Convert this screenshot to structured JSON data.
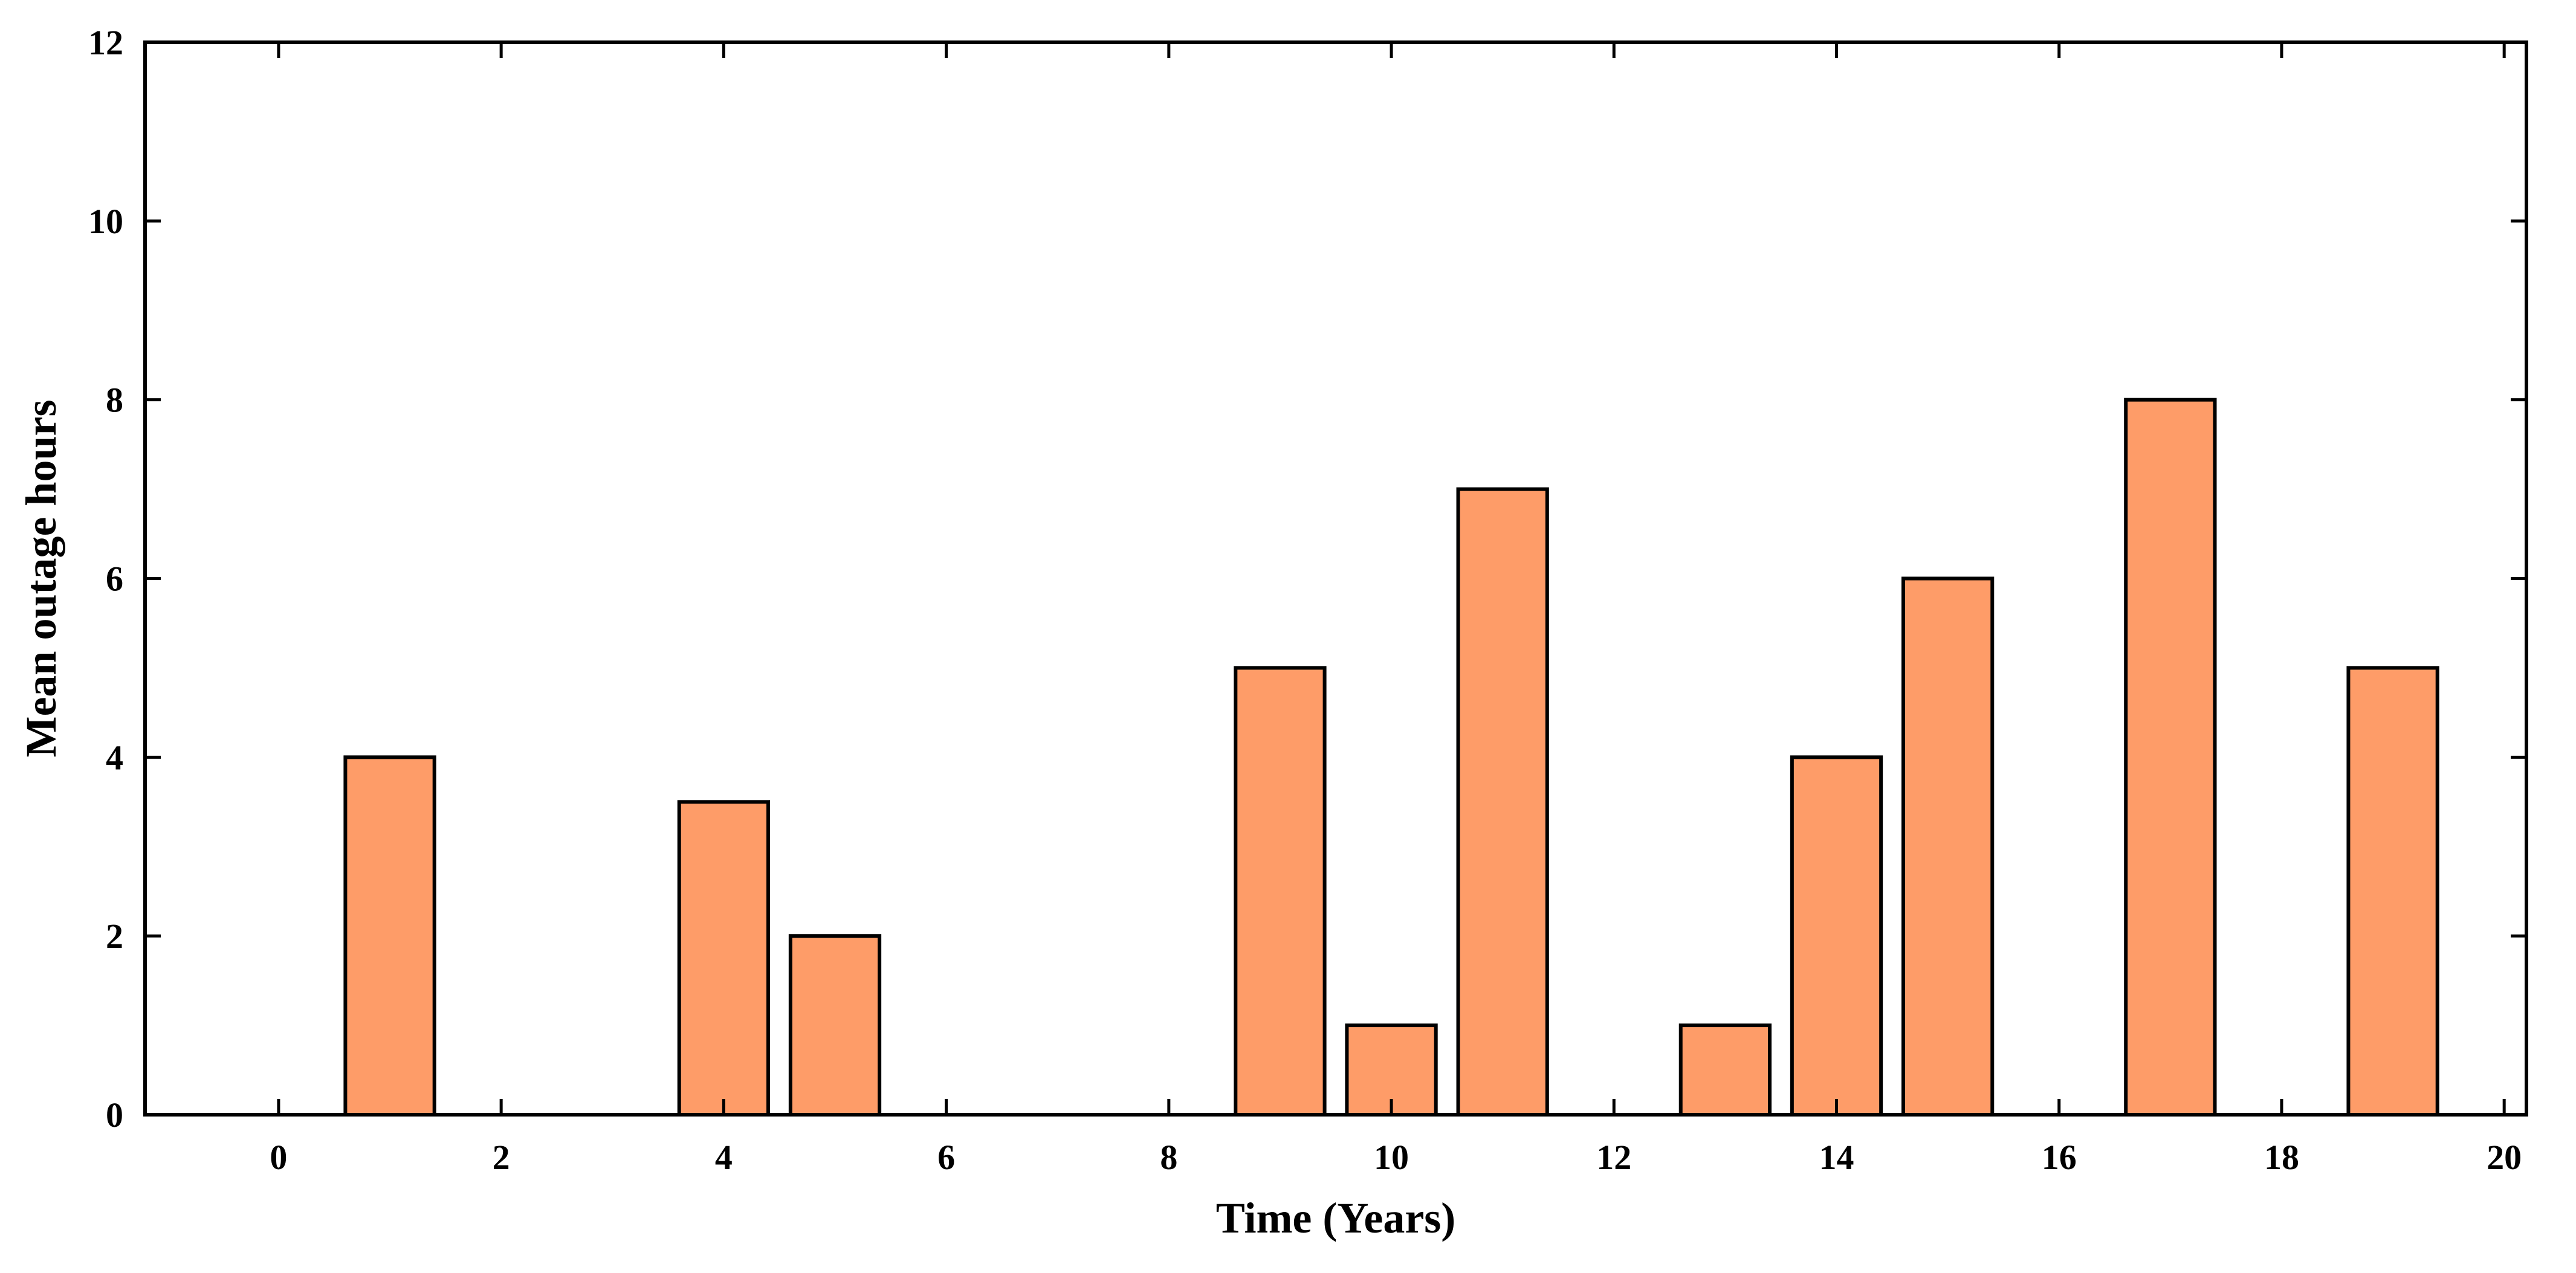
{
  "chart_data": {
    "type": "bar",
    "x": [
      1,
      4,
      5,
      9,
      10,
      11,
      13,
      14,
      15,
      17,
      19
    ],
    "values": [
      4,
      3.5,
      2,
      5,
      1,
      7,
      1,
      4,
      6,
      8,
      5
    ],
    "title": "",
    "xlabel": "Time (Years)",
    "ylabel": "Mean outage hours",
    "xlim": [
      -1.2,
      20.2
    ],
    "ylim": [
      0,
      12
    ],
    "xticks": [
      0,
      2,
      4,
      6,
      8,
      10,
      12,
      14,
      16,
      18,
      20
    ],
    "xtick_labels": [
      "0",
      "2",
      "4",
      "6",
      "8",
      "10",
      "12",
      "14",
      "16",
      "18",
      "20"
    ],
    "yticks": [
      0,
      2,
      4,
      6,
      8,
      10,
      12
    ],
    "ytick_labels": [
      "0",
      "2",
      "4",
      "6",
      "8",
      "10",
      "12"
    ],
    "bar_width_years": 0.8,
    "grid": false,
    "legend": "none",
    "bar_color": "#FE9C68",
    "edge_color": "#000000"
  }
}
